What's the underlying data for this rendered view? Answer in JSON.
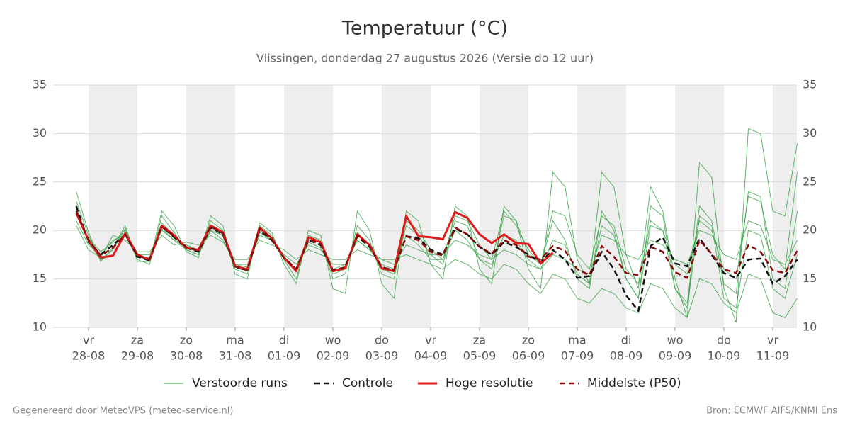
{
  "chart_data": {
    "type": "line",
    "title": "Temperatuur (°C)",
    "subtitle": "Vlissingen, donderdag 27 augustus 2026 (Versie do 12 uur)",
    "footer_left": "Gegenereerd door MeteoVPS (meteo-service.nl)",
    "footer_right": "Bron: ECMWF AIFS/KNMI Ens",
    "categories": [
      null,
      "28-08",
      null,
      null,
      null,
      "29-08",
      null,
      null,
      null,
      "30-08",
      null,
      null,
      null,
      "31-08",
      null,
      null,
      null,
      "01-09",
      null,
      null,
      null,
      "02-09",
      null,
      null,
      null,
      "03-09",
      null,
      null,
      null,
      "04-09",
      null,
      null,
      null,
      "05-09",
      null,
      null,
      null,
      "06-09",
      null,
      null,
      null,
      "07-09",
      null,
      null,
      null,
      "08-09",
      null,
      null,
      null,
      "09-09",
      null,
      null,
      null,
      "10-09",
      null,
      null,
      null,
      "11-09",
      null,
      null
    ],
    "category_weekdays": [
      null,
      "vr",
      null,
      null,
      null,
      "za",
      null,
      null,
      null,
      "zo",
      null,
      null,
      null,
      "ma",
      null,
      null,
      null,
      "di",
      null,
      null,
      null,
      "wo",
      null,
      null,
      null,
      "do",
      null,
      null,
      null,
      "vr",
      null,
      null,
      null,
      "za",
      null,
      null,
      null,
      "zo",
      null,
      null,
      null,
      "ma",
      null,
      null,
      null,
      "di",
      null,
      null,
      null,
      "wo",
      null,
      null,
      null,
      "do",
      null,
      null,
      null,
      "vr",
      null,
      null
    ],
    "ylim": [
      10,
      35
    ],
    "yticks": [
      10,
      15,
      20,
      25,
      30,
      35
    ],
    "grid": true,
    "shade_alternate_days": true,
    "legend": "bottom",
    "ensemble": {
      "name": "Verstoorde runs",
      "color": "#2e9e3e",
      "members": [
        [
          23,
          19.5,
          17,
          18,
          20.2,
          17,
          16.5,
          21.5,
          19.8,
          18,
          17.5,
          21,
          20,
          16,
          15.5,
          20.5,
          19.5,
          17,
          15,
          19.5,
          19,
          15,
          15.5,
          20.5,
          19,
          15.5,
          15,
          21,
          20,
          18,
          17,
          21.5,
          21,
          18.5,
          17,
          22,
          20.5,
          18,
          16.5,
          21,
          19,
          15,
          14,
          22,
          20,
          15,
          13,
          20.5,
          20,
          14,
          12.5,
          22.5,
          21,
          14.5,
          13.5,
          24,
          23.5,
          15,
          14,
          22
        ],
        [
          21,
          18.5,
          17.5,
          19,
          19.5,
          17.5,
          17.5,
          20,
          19,
          18.5,
          18,
          20,
          19,
          16.5,
          16.5,
          19.5,
          19,
          17.5,
          16.5,
          18.5,
          18,
          16.5,
          16.5,
          19,
          18,
          17,
          16.5,
          18.5,
          18,
          17.5,
          17.5,
          19,
          18.5,
          17.5,
          17,
          18,
          17.5,
          16.5,
          16,
          17.5,
          17,
          16,
          15.5,
          19.5,
          19,
          17.5,
          17,
          19,
          18.5,
          17,
          16.5,
          20,
          19.5,
          17.5,
          17,
          21,
          20.5,
          17,
          16.5,
          19
        ],
        [
          24,
          19.8,
          16.8,
          18.2,
          20.5,
          16.8,
          16.8,
          22,
          20.5,
          17.8,
          17.2,
          21.5,
          20.5,
          15.5,
          15,
          20.8,
          19.8,
          16.5,
          14.5,
          20,
          19.5,
          14,
          13.5,
          22,
          20,
          14.5,
          13,
          22,
          21,
          16.5,
          15,
          22.5,
          21.5,
          16,
          14.5,
          22.5,
          21,
          16,
          14,
          26,
          24.5,
          17,
          14.5,
          26,
          24.5,
          17.5,
          14,
          24.5,
          22,
          15,
          11,
          27,
          25.5,
          14,
          10.5,
          30.5,
          30,
          22,
          21.5,
          29
        ],
        [
          20.5,
          18,
          17.2,
          19.5,
          19,
          17.8,
          17.8,
          19.5,
          18.5,
          18.8,
          18.5,
          19.5,
          18.8,
          17,
          17,
          19,
          18.5,
          18,
          17,
          18,
          17.5,
          17,
          17,
          18,
          17.5,
          17,
          17,
          17.5,
          17,
          16.5,
          16,
          17,
          16.5,
          15.5,
          15,
          16.5,
          16,
          14.5,
          13.5,
          15.5,
          15,
          13,
          12.5,
          14,
          13.5,
          12,
          11.5,
          14.5,
          14,
          12,
          11,
          15,
          14.5,
          12.5,
          11.5,
          15.5,
          15,
          11.5,
          11,
          13
        ],
        [
          22,
          19.2,
          17.8,
          18.8,
          20,
          17.2,
          17.2,
          20.8,
          19.5,
          18.2,
          17.8,
          20.5,
          19.8,
          16.2,
          15.8,
          20.2,
          19.2,
          17.2,
          15.8,
          19.2,
          18.8,
          15.5,
          16,
          19.8,
          18.5,
          16,
          15.5,
          20.5,
          19.5,
          17.5,
          16.5,
          21,
          20.5,
          17,
          16,
          21.5,
          21,
          17.5,
          16.5,
          22,
          21.5,
          17.5,
          16,
          21.5,
          20.5,
          16,
          14.5,
          21,
          20,
          16.5,
          15.5,
          21,
          20,
          16,
          15,
          23.5,
          23,
          17.5,
          16,
          26
        ],
        [
          22.5,
          18.8,
          17,
          17.5,
          19.8,
          17.5,
          17,
          20.2,
          19,
          18,
          17.5,
          20,
          19.5,
          16.5,
          16.2,
          19.8,
          19,
          17,
          16,
          18.8,
          18.2,
          16,
          16.5,
          19,
          18,
          16.5,
          16,
          19.5,
          18.5,
          17,
          17,
          20,
          19,
          17,
          16.5,
          19.5,
          19,
          17,
          16,
          19,
          18.5,
          15.5,
          14.5,
          20.5,
          19.5,
          15,
          13,
          22.5,
          21.5,
          14,
          12,
          21.5,
          20.5,
          13,
          12,
          20,
          19.5,
          14,
          13,
          17.5
        ]
      ]
    },
    "series": [
      {
        "name": "Controle",
        "color": "#111111",
        "dash": true,
        "values": [
          22.5,
          18.8,
          17.5,
          18.5,
          19.6,
          17.3,
          16.9,
          20.4,
          19.3,
          18.2,
          17.8,
          20.3,
          19.6,
          16.2,
          15.9,
          20.0,
          19.0,
          17.2,
          16.0,
          19.0,
          18.5,
          15.8,
          16.2,
          19.4,
          18.3,
          16.2,
          15.9,
          19.4,
          19.2,
          18.0,
          17.5,
          20.2,
          19.6,
          18.3,
          17.5,
          18.8,
          18.3,
          17.5,
          16.7,
          18.0,
          17.0,
          15.1,
          15.3,
          17.8,
          16.0,
          13.3,
          11.7,
          18.4,
          19.3,
          16.6,
          16.3,
          19.2,
          17.5,
          15.6,
          15.1,
          17.0,
          17.1,
          14.5,
          15.3,
          17.0
        ]
      },
      {
        "name": "Hoge resolutie",
        "color": "#e01b1b",
        "dash": false,
        "values": [
          21.8,
          19.0,
          17.2,
          17.4,
          19.7,
          17.5,
          17.0,
          20.5,
          19.5,
          18.2,
          18.0,
          20.5,
          19.8,
          16.3,
          16.0,
          20.3,
          19.2,
          17.2,
          15.8,
          19.3,
          18.8,
          15.8,
          16.1,
          19.6,
          18.5,
          16.1,
          15.8,
          21.5,
          19.4,
          19.3,
          19.1,
          21.9,
          21.3,
          19.6,
          18.7,
          19.6,
          18.7,
          18.6,
          16.6,
          17.7,
          null,
          null,
          null,
          null,
          null,
          null,
          null,
          null,
          null,
          null,
          null,
          null,
          null,
          null,
          null,
          null,
          null,
          null,
          null,
          null
        ]
      },
      {
        "name": "Middelste (P50)",
        "color": "#8b0a0a",
        "dash": true,
        "values": [
          22.0,
          19.0,
          17.4,
          18.2,
          19.6,
          17.4,
          17.0,
          20.4,
          19.4,
          18.3,
          17.9,
          20.4,
          19.7,
          16.3,
          15.9,
          20.2,
          19.1,
          17.2,
          16.0,
          19.1,
          18.6,
          15.9,
          16.2,
          19.5,
          18.4,
          16.2,
          15.9,
          19.4,
          19.0,
          17.8,
          17.4,
          20.3,
          19.6,
          18.3,
          17.6,
          19.0,
          18.5,
          17.3,
          17.0,
          18.4,
          17.9,
          16.0,
          15.4,
          18.4,
          17.3,
          15.6,
          15.4,
          18.3,
          17.8,
          15.7,
          15.1,
          19.0,
          17.6,
          16.0,
          15.6,
          18.5,
          17.8,
          15.9,
          15.6,
          17.9
        ]
      }
    ]
  }
}
